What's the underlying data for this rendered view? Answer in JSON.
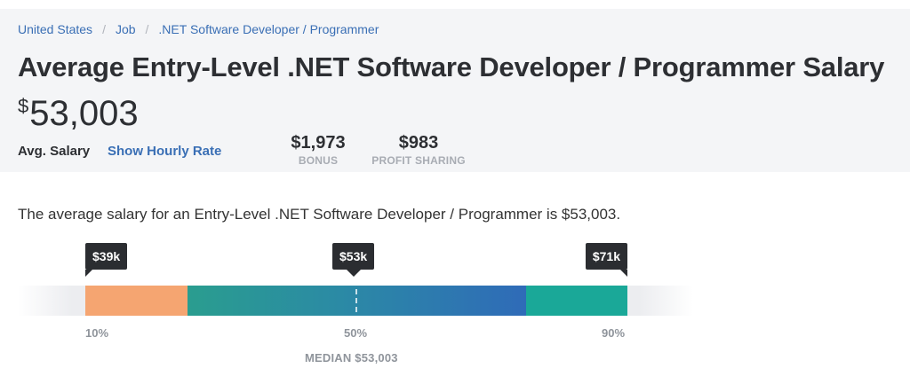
{
  "breadcrumb": {
    "items": [
      "United States",
      "Job",
      ".NET Software Developer / Programmer"
    ],
    "separator": "/"
  },
  "header": {
    "title": "Average Entry-Level .NET Software Developer / Programmer Salary",
    "salary_currency": "$",
    "salary_value": "53,003",
    "avg_label": "Avg. Salary",
    "hourly_link": "Show Hourly Rate",
    "stats": [
      {
        "value": "$1,973",
        "label": "BONUS"
      },
      {
        "value": "$983",
        "label": "PROFIT SHARING"
      }
    ]
  },
  "summary": "The average salary for an Entry-Level .NET Software Developer / Programmer is $53,003.",
  "range": {
    "low": {
      "tooltip": "$39k",
      "percentile": "10%"
    },
    "mid": {
      "tooltip": "$53k",
      "percentile": "50%"
    },
    "high": {
      "tooltip": "$71k",
      "percentile": "90%"
    },
    "median_label": "MEDIAN $53,003",
    "colors": {
      "low": "#f5a571",
      "mid_start": "#2a9d8f",
      "mid_end": "#2f6bb8",
      "high": "#1aa898"
    }
  }
}
